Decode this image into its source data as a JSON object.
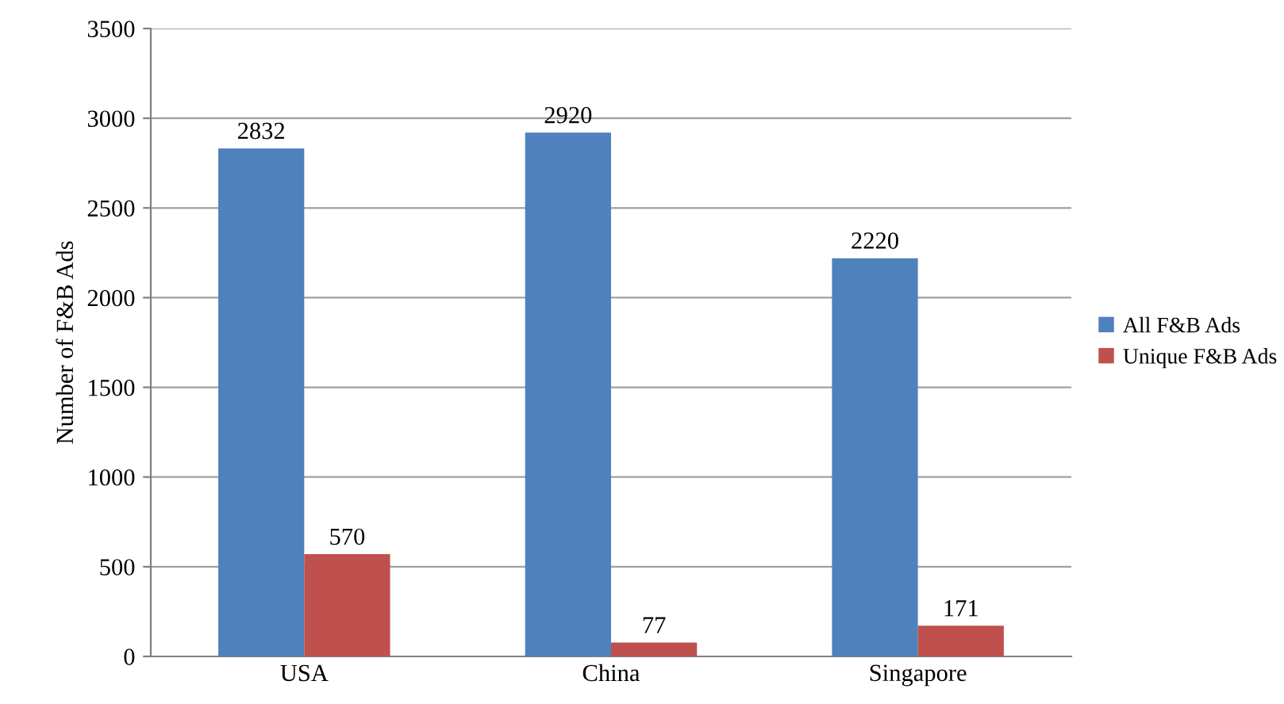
{
  "chart_data": {
    "type": "bar",
    "ylabel": "Number of F&B Ads",
    "categories": [
      "USA",
      "China",
      "Singapore"
    ],
    "series": [
      {
        "name": "All F&B Ads",
        "color": "#4f81bd",
        "values": [
          2832,
          2920,
          2220
        ]
      },
      {
        "name": "Unique F&B Ads",
        "color": "#c0504d",
        "values": [
          570,
          77,
          171
        ]
      }
    ],
    "ylim": [
      0,
      3500
    ],
    "yticks": [
      0,
      500,
      1000,
      1500,
      2000,
      2500,
      3000,
      3500
    ],
    "grid": "y",
    "legend": "right",
    "data_labels": true
  }
}
